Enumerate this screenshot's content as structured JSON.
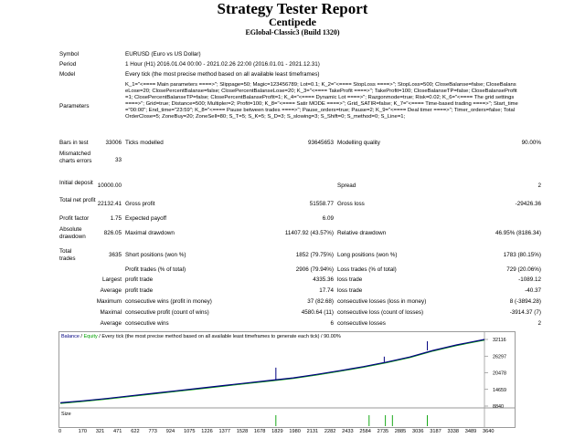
{
  "header": {
    "title": "Strategy Tester Report",
    "subtitle": "Centipede",
    "build": "EGlobal-Classic3 (Build 1320)"
  },
  "meta": {
    "symbol_label": "Symbol",
    "symbol_value": "EURUSD (Euro vs US Dollar)",
    "period_label": "Period",
    "period_value": "1 Hour (H1) 2016.01.04 00:00 - 2021.02.26 22:00 (2016.01.01 - 2021.12.31)",
    "model_label": "Model",
    "model_value": "Every tick (the most precise method based on all available least timeframes)",
    "parameters_label": "Parameters",
    "parameters_value": "K_1=\"<==== Main parameters ====>\"; Slippage=50; Magic=123456789; Lot=0.1; K_2=\"<==== StopLoss ====>\"; StopLoss=500; CloseBalanse=false; CloseBalanseLose=20; ClosePercentBalanse=false; ClosePercentBalanseLose=20; K_3=\"<==== TakeProfit ====>\"; TakeProfit=100; CloseBalanseTP=false; CloseBalanseProfit=1; ClosePercentBalanseTP=false; ClosePercentBalanseProfit=1; K_4=\"<==== Dynamic Lot ====>\"; Razgonmode=true; Risk=0.02; K_6=\"<==== The grid settings ====>\"; Grid=true; Distance=500; Multipler=2; Profit=100; K_8=\"<==== Satir MODE ====>\"; Grid_SATIR=false; K_7=\"<==== Time-based trading ====>\"; Start_time=\"00:00\"; End_time=\"23:59\"; K_8=\"<==== Pause between trades ====>\"; Pause_orders=true; Pause=2; K_9=\"<==== Deal timer ====>\"; Timer_orders=false; TotalOrderClose=5; ZoneBuy=20; ZoneSell=80; S_T=5; S_K=5; S_D=3; S_slowing=3; S_Shift=0; S_method=0; S_Line=1;"
  },
  "stats": {
    "bars_label": "Bars in test",
    "bars_value": "33006",
    "ticks_label": "Ticks modelled",
    "ticks_value": "93645653",
    "quality_label": "Modelling quality",
    "quality_value": "90.00%",
    "mismatch_label": "Mismatched charts errors",
    "mismatch_value": "33",
    "deposit_label": "Initial deposit",
    "deposit_value": "10000.00",
    "spread_label": "Spread",
    "spread_value": "2",
    "net_label": "Total net profit",
    "net_value": "22132.41",
    "gross_profit_label": "Gross profit",
    "gross_profit_value": "51558.77",
    "gross_loss_label": "Gross loss",
    "gross_loss_value": "-29426.36",
    "pf_label": "Profit factor",
    "pf_value": "1.75",
    "payoff_label": "Expected payoff",
    "payoff_value": "6.09",
    "abs_dd_label": "Absolute drawdown",
    "abs_dd_value": "826.05",
    "max_dd_label": "Maximal drawdown",
    "max_dd_value": "11407.92 (43.57%)",
    "rel_dd_label": "Relative drawdown",
    "rel_dd_value": "46.95% (8186.34)",
    "trades_label": "Total trades",
    "trades_value": "3635",
    "short_label": "Short positions (won %)",
    "short_value": "1852 (79.75%)",
    "long_label": "Long positions (won %)",
    "long_value": "1783 (80.15%)",
    "profit_trades_label": "Profit trades (% of total)",
    "profit_trades_value": "2906 (79.94%)",
    "loss_trades_label": "Loss trades (% of total)",
    "loss_trades_value": "729 (20.06%)",
    "largest_label": "Largest",
    "largest_profit_label": "profit trade",
    "largest_profit_value": "4335.36",
    "largest_loss_label": "loss trade",
    "largest_loss_value": "-1089.12",
    "average_label": "Average",
    "average_profit_label": "profit trade",
    "average_profit_value": "17.74",
    "average_loss_label": "loss trade",
    "average_loss_value": "-40.37",
    "maximum_label": "Maximum",
    "max_wins_label": "consecutive wins (profit in money)",
    "max_wins_value": "37 (82.68)",
    "max_losses_label": "consecutive losses (loss in money)",
    "max_losses_value": "8 (-3894.28)",
    "maximal_label": "Maximal",
    "maximal_profit_label": "consecutive profit (count of wins)",
    "maximal_profit_value": "4580.64 (11)",
    "maximal_loss_label": "consecutive loss (count of losses)",
    "maximal_loss_value": "-3914.37 (7)",
    "average2_label": "Average",
    "avg_wins_label": "consecutive wins",
    "avg_wins_value": "6",
    "avg_losses_label": "consecutive losses",
    "avg_losses_value": "2"
  },
  "chart_data": {
    "type": "line",
    "legend_balance": "Balance",
    "legend_sep": " / ",
    "legend_equity": "Equity",
    "legend_rest": " / Every tick (the most precise method based on all available least timeframes to generate each tick) / 90.00%",
    "size_label": "Size",
    "y_ticks": [
      "32116",
      "26297",
      "20478",
      "14659",
      "8840"
    ],
    "ylim": [
      8840,
      32116
    ],
    "x_ticks": [
      "0",
      "170",
      "321",
      "471",
      "622",
      "773",
      "924",
      "1075",
      "1226",
      "1377",
      "1528",
      "1678",
      "1829",
      "1980",
      "2131",
      "2282",
      "2433",
      "2584",
      "2735",
      "2885",
      "3036",
      "3187",
      "3338",
      "3489",
      "3640"
    ],
    "xlim": [
      0,
      3640
    ],
    "series": [
      {
        "name": "Balance",
        "x": [
          0,
          200,
          400,
          600,
          800,
          1000,
          1200,
          1400,
          1600,
          1800,
          2000,
          2200,
          2400,
          2600,
          2800,
          3000,
          3200,
          3400,
          3640
        ],
        "values": [
          10000,
          10700,
          11500,
          12400,
          13300,
          14200,
          15100,
          16000,
          16900,
          17800,
          18700,
          19900,
          21200,
          22600,
          24200,
          26000,
          28300,
          30200,
          32116
        ]
      }
    ],
    "balance_color": "#000080",
    "equity_color": "#00a000"
  }
}
